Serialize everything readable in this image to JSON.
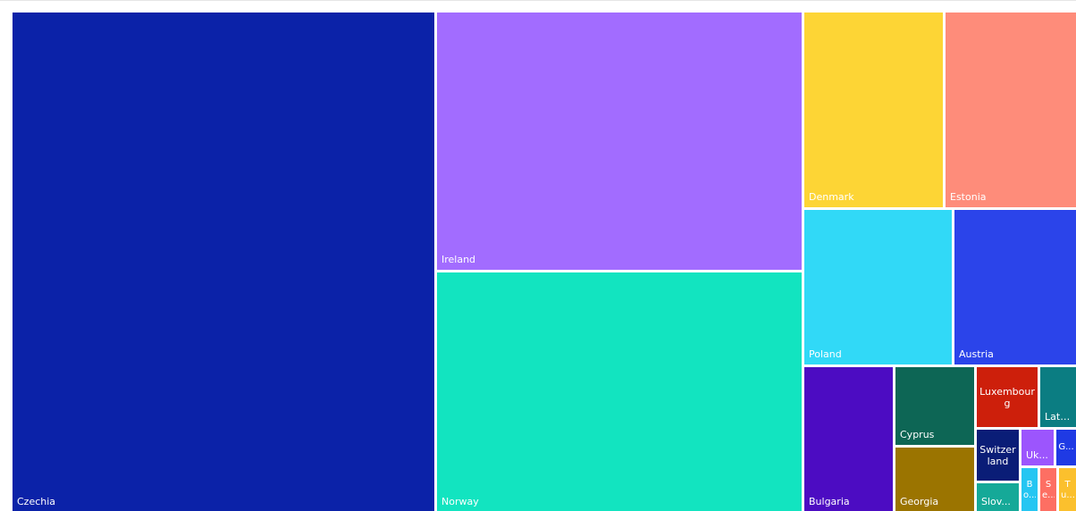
{
  "chart_data": {
    "type": "treemap",
    "title": "",
    "items": [
      {
        "label": "Czechia",
        "value": 100,
        "color": "#0b22a8"
      },
      {
        "label": "Ireland",
        "value": 40,
        "color": "#a26cff"
      },
      {
        "label": "Norway",
        "value": 37,
        "color": "#12e4c0"
      },
      {
        "label": "Denmark",
        "value": 11,
        "color": "#fdd535"
      },
      {
        "label": "Estonia",
        "value": 11,
        "color": "#fe8c7a"
      },
      {
        "label": "Poland",
        "value": 9.6,
        "color": "#31d9f7"
      },
      {
        "label": "Austria",
        "value": 9.5,
        "color": "#2b44ea"
      },
      {
        "label": "Bulgaria",
        "value": 5.6,
        "color": "#4c0cc2"
      },
      {
        "label": "Cyprus",
        "value": 2.6,
        "color": "#0d6655"
      },
      {
        "label": "Georgia",
        "value": 2.3,
        "color": "#9b7400"
      },
      {
        "label": "Luxembourg",
        "value": 2.1,
        "color": "#cd1f0b"
      },
      {
        "label": "Latvia",
        "value": 1.3,
        "color": "#0b7d82"
      },
      {
        "label": "Switzerland",
        "value": 1.1,
        "color": "#0a1d77"
      },
      {
        "label": "Uk...",
        "value": 0.6,
        "color": "#9c55fd"
      },
      {
        "label": "G...",
        "value": 0.6,
        "color": "#1f3ae4"
      },
      {
        "label": "Slov...",
        "value": 0.6,
        "color": "#15a998"
      },
      {
        "label": "Bo...",
        "value": 0.2,
        "color": "#25c6f2"
      },
      {
        "label": "Se...",
        "value": 0.2,
        "color": "#fd6f63"
      },
      {
        "label": "Tu...",
        "value": 0.2,
        "color": "#fbc02d"
      }
    ]
  }
}
